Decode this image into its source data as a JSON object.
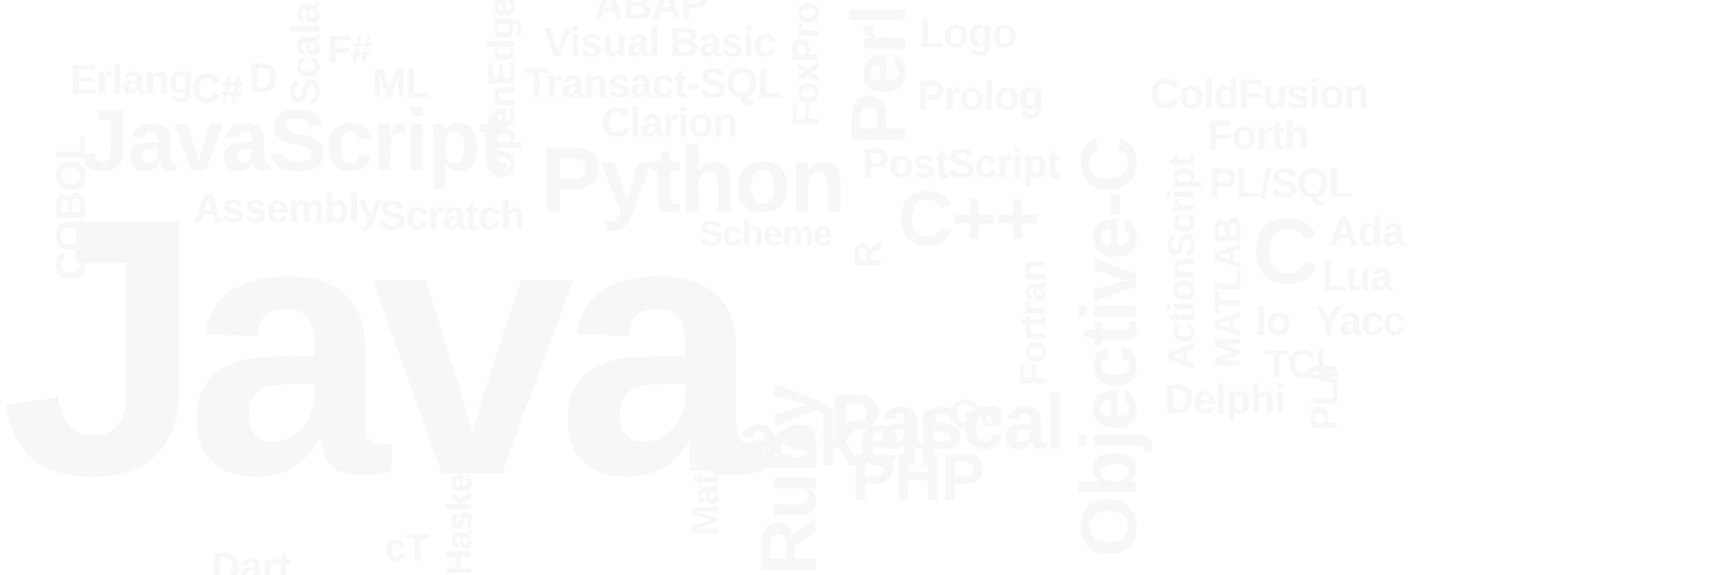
{
  "word_color": "#f7f7f7",
  "background": "#ffffff",
  "words": {
    "java": "Java",
    "javascript": "JavaScript",
    "python": "Python",
    "objective_c": "Objective-C",
    "haskell_main": "Haskell",
    "pascal": "Pascal",
    "php": "PHP",
    "cpp": "C++",
    "c": "C",
    "ruby": "Ruby",
    "perl": "Perl",
    "visual_basic": "Visual Basic",
    "transact_sql": "Transact-SQL",
    "assembly": "Assembly",
    "scratch": "Scratch",
    "erlang": "Erlang",
    "csharp": "C#",
    "d": "D",
    "scala": "Scala",
    "fsharp": "F#",
    "ml": "ML",
    "abap": "ABAP",
    "openedge": "OpenEdge",
    "clarion": "Clarion",
    "foxpro": "FoxPro",
    "logo": "Logo",
    "prolog": "Prolog",
    "coldfusion": "ColdFusion",
    "forth": "Forth",
    "postscript": "PostScript",
    "pl_sql": "PL/SQL",
    "actionscript": "ActionScript",
    "ada": "Ada",
    "lua": "Lua",
    "io": "Io",
    "yacc": "Yacc",
    "tcl": "TCL",
    "matlab": "MATLAB",
    "delphi": "Delphi",
    "pl_i": "PL/I",
    "scheme": "Scheme",
    "r": "R",
    "go": "Go",
    "fortran": "Fortran",
    "cobol": "COBOL",
    "dart": "Dart",
    "ct": "cT",
    "mathematica": "Mathematica",
    "haskell_small": "Haskell"
  }
}
